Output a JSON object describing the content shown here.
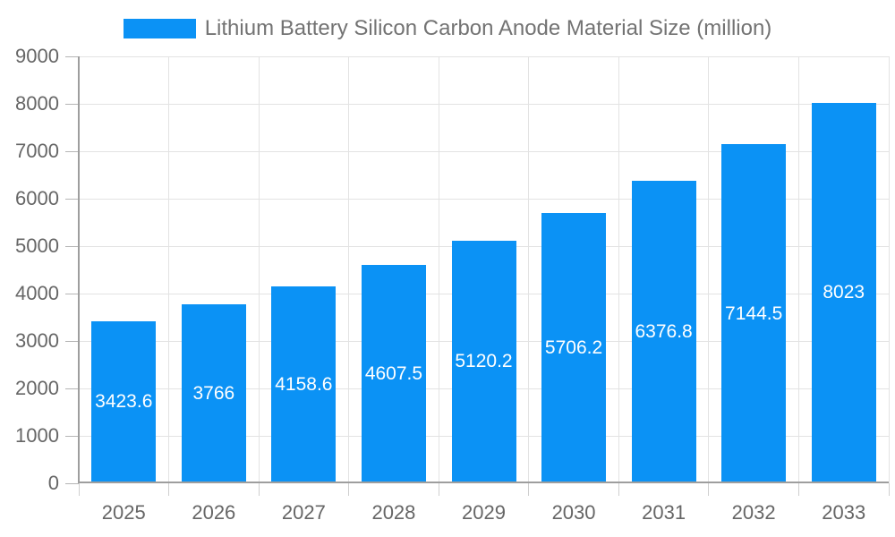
{
  "chart_data": {
    "type": "bar",
    "title": "Lithium Battery Silicon Carbon Anode Material Size (million)",
    "legend": [
      "Lithium Battery Silicon Carbon Anode Material Size (million)"
    ],
    "legend_position": "top-center",
    "categories": [
      "2025",
      "2026",
      "2027",
      "2028",
      "2029",
      "2030",
      "2031",
      "2032",
      "2033"
    ],
    "series": [
      {
        "name": "Lithium Battery Silicon Carbon Anode Material Size (million)",
        "values": [
          3423.6,
          3766,
          4158.6,
          4607.5,
          5120.2,
          5706.2,
          6376.8,
          7144.5,
          8023
        ]
      }
    ],
    "value_labels": [
      "3423.6",
      "3766",
      "4158.6",
      "4607.5",
      "5120.2",
      "5706.2",
      "6376.8",
      "7144.5",
      "8023"
    ],
    "xlabel": "",
    "ylabel": "",
    "ylim": [
      0,
      9000
    ],
    "yticks": [
      0,
      1000,
      2000,
      3000,
      4000,
      5000,
      6000,
      7000,
      8000,
      9000
    ],
    "grid": true,
    "colors": {
      "bar": "#0B92F5",
      "value_label": "#FFFFFF",
      "axis_label": "#666666",
      "title": "#737373",
      "axis_line": "#9E9E9E",
      "gridline": "#E3E3E3",
      "y_tick": "#B5B5B5",
      "x_tick": "#CFCFCF",
      "background": "#FFFFFF"
    }
  }
}
